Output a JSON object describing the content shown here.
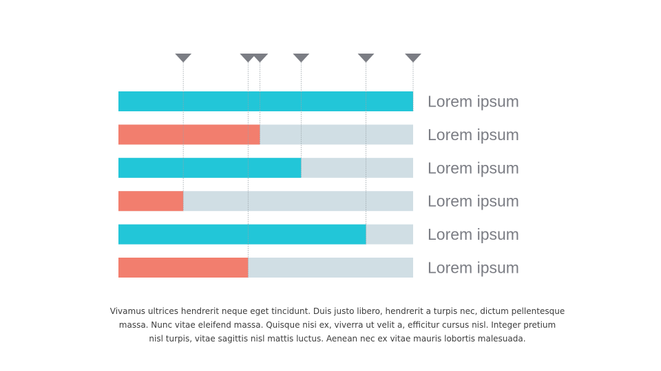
{
  "chart_data": {
    "type": "bar",
    "orientation": "horizontal",
    "categories": [
      "Lorem ipsum",
      "Lorem ipsum",
      "Lorem ipsum",
      "Lorem ipsum",
      "Lorem ipsum",
      "Lorem ipsum"
    ],
    "values": [
      100,
      48,
      62,
      22,
      84,
      44
    ],
    "xlim": [
      0,
      100
    ],
    "bar_colors": [
      "#22c6d8",
      "#f27e6e",
      "#22c6d8",
      "#f27e6e",
      "#22c6d8",
      "#f27e6e"
    ],
    "track_color": "#d0dee4",
    "marker_color": "#7b7d84",
    "label_color": "#7b7d84",
    "markers": "one downward triangle above the bars at the end of each bar, with a thin dotted guide line",
    "grid": false,
    "legend": "none"
  },
  "caption": {
    "lines": [
      "Vivamus ultrices hendrerit neque eget tincidunt. Duis justo libero, hendrerit a turpis nec, dictum pellentesque",
      "massa. Nunc vitae eleifend massa. Quisque nisi ex, viverra ut velit a, efficitur cursus nisl. Integer pretium",
      "nisl turpis, vitae sagittis nisl mattis luctus. Aenean nec ex vitae mauris lobortis malesuada."
    ]
  }
}
